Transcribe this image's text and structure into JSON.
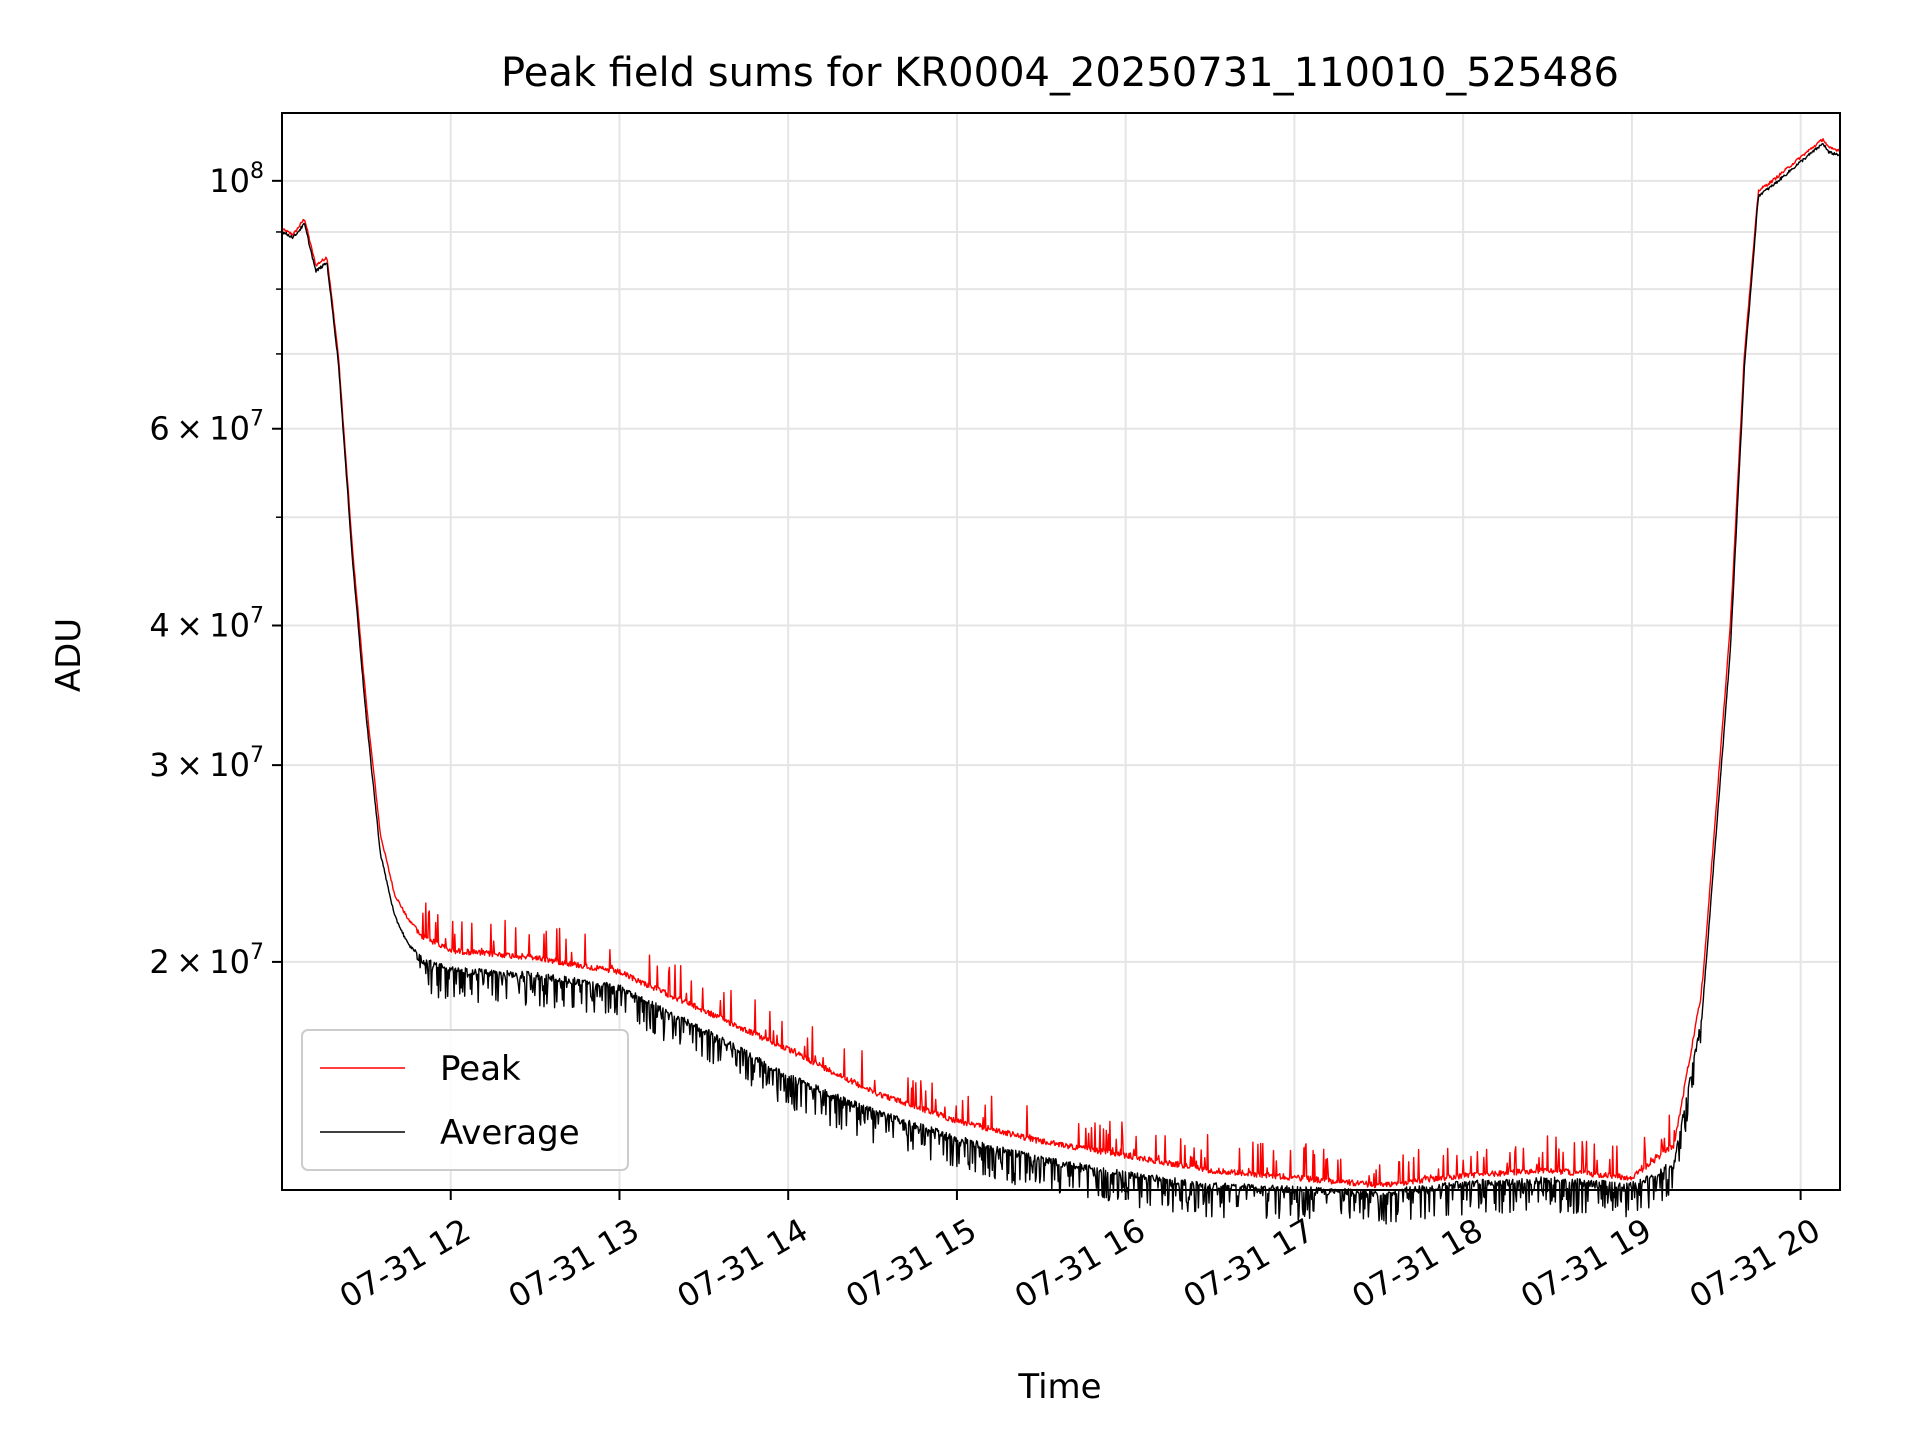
{
  "chart_data": {
    "type": "line",
    "title": "Peak field sums for KR0004_20250731_110010_525486",
    "xlabel": "Time",
    "ylabel": "ADU",
    "y_scale": "log",
    "ylim": [
      12500000,
      115000000
    ],
    "xlim": [
      "2025-07-31 11:00",
      "2025-07-31 20:14"
    ],
    "grid": true,
    "legend_location": "lower left",
    "x_ticks": [
      {
        "value": "2025-07-31 12:00",
        "label": "07-31 12"
      },
      {
        "value": "2025-07-31 13:00",
        "label": "07-31 13"
      },
      {
        "value": "2025-07-31 14:00",
        "label": "07-31 14"
      },
      {
        "value": "2025-07-31 15:00",
        "label": "07-31 15"
      },
      {
        "value": "2025-07-31 16:00",
        "label": "07-31 16"
      },
      {
        "value": "2025-07-31 17:00",
        "label": "07-31 17"
      },
      {
        "value": "2025-07-31 18:00",
        "label": "07-31 18"
      },
      {
        "value": "2025-07-31 19:00",
        "label": "07-31 19"
      },
      {
        "value": "2025-07-31 20:00",
        "label": "07-31 20"
      }
    ],
    "y_ticks": [
      {
        "value": 20000000,
        "mantissa": "2",
        "exponent": "7"
      },
      {
        "value": 30000000,
        "mantissa": "3",
        "exponent": "7"
      },
      {
        "value": 40000000,
        "mantissa": "4",
        "exponent": "7"
      },
      {
        "value": 60000000,
        "mantissa": "6",
        "exponent": "7"
      },
      {
        "value": 100000000,
        "mantissa": "",
        "exponent": "8"
      }
    ],
    "y_minor_ticks": [
      50000000,
      70000000,
      80000000,
      90000000
    ],
    "series": [
      {
        "name": "Peak",
        "color": "#ff0000",
        "x": [
          "2025-07-31 11:00",
          "2025-07-31 11:04",
          "2025-07-31 11:08",
          "2025-07-31 11:12",
          "2025-07-31 11:16",
          "2025-07-31 11:20",
          "2025-07-31 11:25",
          "2025-07-31 11:30",
          "2025-07-31 11:35",
          "2025-07-31 11:40",
          "2025-07-31 11:45",
          "2025-07-31 11:50",
          "2025-07-31 12:00",
          "2025-07-31 12:30",
          "2025-07-31 13:00",
          "2025-07-31 13:30",
          "2025-07-31 14:00",
          "2025-07-31 14:30",
          "2025-07-31 15:00",
          "2025-07-31 15:30",
          "2025-07-31 16:00",
          "2025-07-31 16:30",
          "2025-07-31 17:00",
          "2025-07-31 17:30",
          "2025-07-31 18:00",
          "2025-07-31 18:30",
          "2025-07-31 19:00",
          "2025-07-31 19:15",
          "2025-07-31 19:25",
          "2025-07-31 19:35",
          "2025-07-31 19:40",
          "2025-07-31 19:45",
          "2025-07-31 19:50",
          "2025-07-31 20:00",
          "2025-07-31 20:08",
          "2025-07-31 20:10",
          "2025-07-31 20:14"
        ],
        "y": [
          90500000,
          89500000,
          92500000,
          84000000,
          85500000,
          70000000,
          47000000,
          34000000,
          26000000,
          23000000,
          21800000,
          21200000,
          20600000,
          20300000,
          19700000,
          18200000,
          16800000,
          15400000,
          14500000,
          13900000,
          13500000,
          13100000,
          12900000,
          12700000,
          12950000,
          13100000,
          12900000,
          13800000,
          19000000,
          40000000,
          70000000,
          98000000,
          100000000,
          105000000,
          109000000,
          107000000,
          106500000
        ]
      },
      {
        "name": "Average",
        "color": "#000000",
        "x": [
          "2025-07-31 11:00",
          "2025-07-31 11:04",
          "2025-07-31 11:08",
          "2025-07-31 11:12",
          "2025-07-31 11:16",
          "2025-07-31 11:20",
          "2025-07-31 11:25",
          "2025-07-31 11:30",
          "2025-07-31 11:35",
          "2025-07-31 11:40",
          "2025-07-31 11:45",
          "2025-07-31 11:50",
          "2025-07-31 12:00",
          "2025-07-31 12:30",
          "2025-07-31 13:00",
          "2025-07-31 13:30",
          "2025-07-31 14:00",
          "2025-07-31 14:30",
          "2025-07-31 15:00",
          "2025-07-31 15:30",
          "2025-07-31 16:00",
          "2025-07-31 16:30",
          "2025-07-31 17:00",
          "2025-07-31 17:30",
          "2025-07-31 18:00",
          "2025-07-31 18:30",
          "2025-07-31 19:00",
          "2025-07-31 19:15",
          "2025-07-31 19:25",
          "2025-07-31 19:35",
          "2025-07-31 19:40",
          "2025-07-31 19:45",
          "2025-07-31 19:50",
          "2025-07-31 20:00",
          "2025-07-31 20:08",
          "2025-07-31 20:10",
          "2025-07-31 20:14"
        ],
        "y": [
          90000000,
          89000000,
          91500000,
          83000000,
          84500000,
          69000000,
          46000000,
          33000000,
          25000000,
          22000000,
          20700000,
          20200000,
          19800000,
          19600000,
          19100000,
          17500000,
          15900000,
          14800000,
          14000000,
          13400000,
          13000000,
          12700000,
          12600000,
          12500000,
          12750000,
          12850000,
          12700000,
          13300000,
          18000000,
          38000000,
          68000000,
          97000000,
          99000000,
          104000000,
          108000000,
          106000000,
          105500000
        ]
      }
    ]
  }
}
